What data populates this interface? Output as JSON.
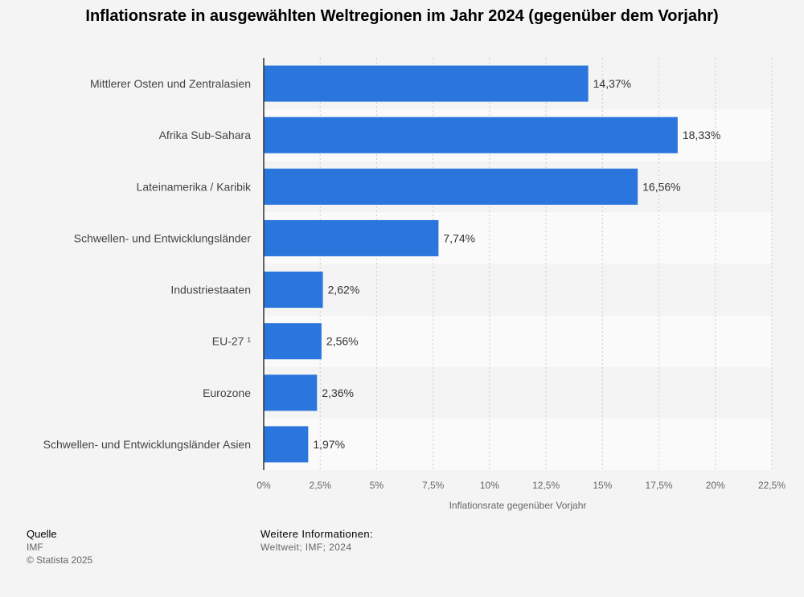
{
  "chart_data": {
    "type": "bar",
    "orientation": "horizontal",
    "title": "Inflationsrate in ausgewählten Weltregionen im Jahr 2024 (gegenüber dem Vorjahr)",
    "xlabel": "Inflationsrate gegenüber Vorjahr",
    "ylabel": "",
    "categories": [
      "Mittlerer Osten und Zentralasien",
      "Afrika Sub-Sahara",
      "Lateinamerika / Karibik",
      "Schwellen- und Entwicklungsländer",
      "Industriestaaten",
      "EU-27 ¹",
      "Eurozone",
      "Schwellen- und Entwicklungsländer Asien"
    ],
    "values": [
      14.37,
      18.33,
      16.56,
      7.74,
      2.62,
      2.56,
      2.36,
      1.97
    ],
    "value_labels": [
      "14,37%",
      "18,33%",
      "16,56%",
      "7,74%",
      "2,62%",
      "2,56%",
      "2,36%",
      "1,97%"
    ],
    "xlim": [
      0,
      22.5
    ],
    "ticks": [
      0,
      2.5,
      5,
      7.5,
      10,
      12.5,
      15,
      17.5,
      20,
      22.5
    ],
    "tick_labels": [
      "0%",
      "2,5%",
      "5%",
      "7,5%",
      "10%",
      "12,5%",
      "15%",
      "17,5%",
      "20%",
      "22,5%"
    ],
    "grid": true,
    "colors": {
      "bar": "#2a76dd",
      "background": "#f4f4f4",
      "band_alt": "#fafafa",
      "grid": "#cccccc"
    }
  },
  "footer": {
    "source_heading": "Quelle",
    "source_name": "IMF",
    "copyright": "© Statista 2025",
    "info_heading": "Weitere Informationen:",
    "info_text": "Weltweit; IMF; 2024"
  }
}
